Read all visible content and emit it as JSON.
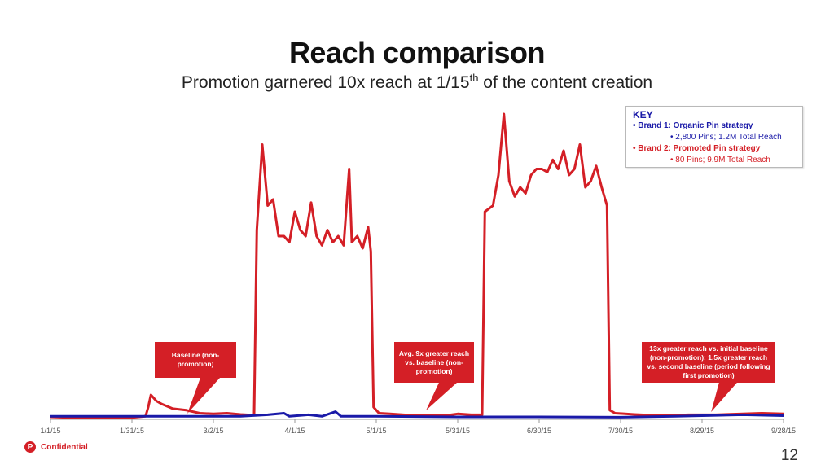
{
  "slide": {
    "title": "Reach comparison",
    "subtitle_main": "Promotion garnered 10x reach at 1/15",
    "subtitle_sup": "th",
    "subtitle_end": " of the content creation",
    "confidential": "Confidential",
    "page_number": "12"
  },
  "key": {
    "title": "KEY",
    "brand1": "Brand 1: Organic Pin strategy",
    "brand1_detail": "2,800 Pins; 1.2M Total Reach",
    "brand2": "Brand 2: Promoted Pin strategy",
    "brand2_detail": "80 Pins; 9.9M Total Reach"
  },
  "callouts": {
    "baseline": "Baseline (non-promotion)",
    "avg9x": "Avg. 9x greater reach vs. baseline (non-promotion)",
    "thirteen_x": "13x greater reach vs. initial baseline (non-promotion); 1.5x greater reach vs. second baseline (period following first promotion)"
  },
  "colors": {
    "brand1": "#1a1aa8",
    "brand2": "#d41f26",
    "axis": "#999999"
  },
  "chart_data": {
    "type": "line",
    "x_ticks": [
      "1/1/15",
      "1/31/15",
      "3/2/15",
      "4/1/15",
      "5/1/15",
      "5/31/15",
      "6/30/15",
      "7/30/15",
      "8/29/15",
      "9/28/15"
    ],
    "xlim": [
      "1/1/15",
      "10/1/15"
    ],
    "ylim": [
      0,
      100
    ],
    "grid": false,
    "legend_placement": "top-right",
    "series": [
      {
        "name": "Brand 1: Organic Pin strategy",
        "color": "#1a1aa8",
        "points": [
          [
            0,
            1
          ],
          [
            35,
            1
          ],
          [
            70,
            1
          ],
          [
            80,
            1.5
          ],
          [
            86,
            2
          ],
          [
            88,
            1
          ],
          [
            95,
            1.5
          ],
          [
            100,
            1
          ],
          [
            105,
            2.5
          ],
          [
            107,
            1
          ],
          [
            120,
            1
          ],
          [
            150,
            0.8
          ],
          [
            180,
            0.8
          ],
          [
            210,
            0.7
          ],
          [
            230,
            1
          ],
          [
            240,
            1.2
          ],
          [
            255,
            1.5
          ],
          [
            270,
            1.2
          ]
        ]
      },
      {
        "name": "Brand 2: Promoted Pin strategy",
        "color": "#d41f26",
        "points": [
          [
            0,
            0.8
          ],
          [
            10,
            0.5
          ],
          [
            20,
            0.5
          ],
          [
            30,
            0.6
          ],
          [
            35,
            1
          ],
          [
            36,
            4
          ],
          [
            37,
            8
          ],
          [
            39,
            6
          ],
          [
            41,
            5
          ],
          [
            45,
            3.5
          ],
          [
            50,
            3
          ],
          [
            55,
            2
          ],
          [
            60,
            1.8
          ],
          [
            65,
            2
          ],
          [
            70,
            1.6
          ],
          [
            74,
            1.4
          ],
          [
            75,
            1.5
          ],
          [
            76,
            62
          ],
          [
            78,
            90
          ],
          [
            80,
            70
          ],
          [
            82,
            72
          ],
          [
            84,
            60
          ],
          [
            86,
            60
          ],
          [
            88,
            58
          ],
          [
            90,
            68
          ],
          [
            92,
            62
          ],
          [
            94,
            60
          ],
          [
            96,
            71
          ],
          [
            98,
            60
          ],
          [
            100,
            57
          ],
          [
            102,
            62
          ],
          [
            104,
            58
          ],
          [
            106,
            60
          ],
          [
            108,
            57
          ],
          [
            110,
            82
          ],
          [
            111,
            58
          ],
          [
            113,
            60
          ],
          [
            115,
            56
          ],
          [
            117,
            63
          ],
          [
            118,
            55
          ],
          [
            119,
            4
          ],
          [
            121,
            2
          ],
          [
            125,
            1.8
          ],
          [
            130,
            1.5
          ],
          [
            135,
            1.2
          ],
          [
            140,
            1.2
          ],
          [
            145,
            1.2
          ],
          [
            150,
            1.8
          ],
          [
            155,
            1.5
          ],
          [
            159,
            1.5
          ],
          [
            160,
            68
          ],
          [
            163,
            70
          ],
          [
            165,
            80
          ],
          [
            167,
            100
          ],
          [
            169,
            78
          ],
          [
            171,
            73
          ],
          [
            173,
            76
          ],
          [
            175,
            74
          ],
          [
            177,
            80
          ],
          [
            179,
            82
          ],
          [
            181,
            82
          ],
          [
            183,
            81
          ],
          [
            185,
            85
          ],
          [
            187,
            82
          ],
          [
            189,
            88
          ],
          [
            191,
            80
          ],
          [
            193,
            82
          ],
          [
            195,
            90
          ],
          [
            197,
            76
          ],
          [
            199,
            78
          ],
          [
            201,
            83
          ],
          [
            203,
            76
          ],
          [
            205,
            70
          ],
          [
            206,
            3
          ],
          [
            208,
            2
          ],
          [
            215,
            1.6
          ],
          [
            225,
            1.2
          ],
          [
            235,
            1.5
          ],
          [
            245,
            1.5
          ],
          [
            255,
            1.8
          ],
          [
            262,
            2
          ],
          [
            270,
            1.8
          ]
        ]
      }
    ]
  }
}
